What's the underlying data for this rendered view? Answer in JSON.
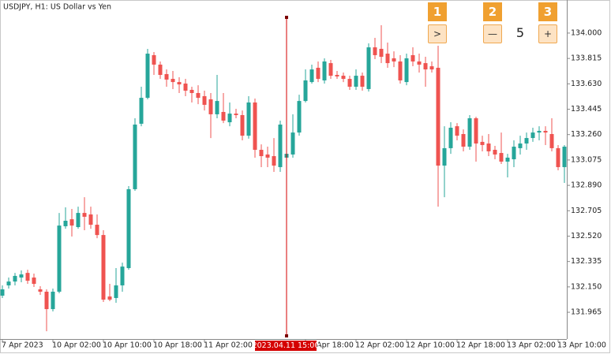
{
  "chart_data": {
    "type": "candlestick",
    "title": "USDJPY, H1:  US Dollar vs Yen",
    "up_color": "#26a69a",
    "down_color": "#ef5350",
    "open": [
      132.086,
      132.161,
      132.189,
      132.218,
      132.252,
      132.218,
      132.132,
      132.115,
      131.988,
      132.115,
      132.592,
      132.643,
      132.586,
      132.689,
      132.678,
      132.603,
      132.528,
      132.08,
      132.069,
      132.161,
      132.287,
      132.862,
      133.339,
      133.528,
      133.839,
      133.77,
      133.701,
      133.666,
      133.643,
      133.632,
      133.586,
      133.563,
      133.54,
      133.517,
      133.408,
      133.425,
      133.35,
      133.413,
      133.402,
      133.252,
      133.494,
      133.149,
      133.115,
      133.103,
      133.023,
      133.092,
      133.115,
      133.275,
      133.505,
      133.643,
      133.747,
      133.655,
      133.781,
      133.695,
      133.689,
      133.666,
      133.609,
      133.689,
      133.592,
      133.896,
      133.885,
      133.85,
      133.816,
      133.793,
      133.643,
      133.839,
      133.793,
      133.781,
      133.758,
      133.747,
      133.034,
      133.161,
      133.321,
      133.264,
      133.172,
      133.379,
      133.207,
      133.195,
      133.149,
      133.126,
      133.063,
      133.08,
      133.161,
      133.195,
      133.235,
      133.275,
      133.287,
      133.264,
      133.161,
      133.023
    ],
    "high": [
      132.161,
      132.218,
      132.252,
      132.27,
      132.275,
      132.247,
      132.155,
      132.132,
      132.138,
      132.689,
      132.73,
      132.718,
      132.735,
      132.804,
      132.735,
      132.678,
      132.563,
      132.172,
      132.287,
      132.327,
      132.885,
      133.379,
      133.609,
      133.885,
      133.862,
      133.793,
      133.735,
      133.724,
      133.678,
      133.666,
      133.609,
      133.62,
      133.58,
      133.563,
      133.695,
      133.563,
      133.494,
      133.448,
      133.436,
      133.54,
      133.523,
      133.189,
      133.172,
      133.235,
      133.362,
      133.207,
      133.408,
      133.551,
      133.735,
      133.77,
      133.793,
      133.816,
      133.804,
      133.724,
      133.712,
      133.689,
      133.735,
      133.712,
      133.925,
      133.965,
      134.057,
      133.931,
      133.867,
      133.839,
      133.85,
      133.896,
      133.85,
      133.827,
      133.793,
      133.908,
      133.321,
      133.35,
      133.344,
      133.298,
      133.402,
      133.39,
      133.252,
      133.264,
      133.178,
      133.275,
      133.12,
      133.218,
      133.252,
      133.275,
      133.31,
      133.321,
      133.321,
      133.379,
      133.184,
      133.184
    ],
    "low": [
      132.069,
      132.138,
      132.161,
      132.184,
      132.172,
      132.149,
      132.092,
      131.827,
      131.971,
      132.103,
      132.574,
      132.517,
      132.574,
      132.563,
      132.574,
      132.505,
      132.04,
      132.046,
      132.034,
      132.115,
      132.275,
      132.85,
      133.321,
      133.517,
      133.695,
      133.666,
      133.609,
      133.592,
      133.563,
      133.54,
      133.494,
      133.482,
      133.436,
      133.235,
      133.379,
      133.344,
      133.321,
      133.379,
      133.218,
      133.23,
      133.092,
      133.023,
      133.023,
      132.988,
      132.988,
      133.057,
      133.092,
      133.252,
      133.494,
      133.632,
      133.643,
      133.632,
      133.666,
      133.666,
      133.643,
      133.586,
      133.586,
      133.58,
      133.574,
      133.81,
      133.781,
      133.747,
      133.752,
      133.632,
      133.62,
      133.758,
      133.712,
      133.609,
      133.712,
      132.735,
      132.804,
      133.12,
      133.218,
      133.138,
      133.149,
      133.063,
      133.138,
      133.103,
      133.08,
      133.046,
      132.948,
      133.023,
      133.115,
      133.149,
      133.207,
      133.218,
      133.184,
      133.138,
      133.0,
      132.908
    ],
    "close": [
      132.132,
      132.189,
      132.23,
      132.241,
      132.195,
      132.172,
      132.115,
      131.988,
      132.115,
      132.597,
      132.632,
      132.597,
      132.689,
      132.661,
      132.603,
      132.528,
      132.057,
      132.057,
      132.161,
      132.298,
      132.862,
      133.333,
      133.528,
      133.85,
      133.77,
      133.695,
      133.661,
      133.643,
      133.626,
      133.58,
      133.563,
      133.528,
      133.477,
      133.408,
      133.505,
      133.362,
      133.413,
      133.402,
      133.252,
      133.494,
      133.149,
      133.103,
      133.092,
      133.034,
      133.333,
      133.12,
      133.275,
      133.505,
      133.655,
      133.735,
      133.666,
      133.793,
      133.689,
      133.684,
      133.666,
      133.609,
      133.689,
      133.609,
      133.896,
      133.839,
      133.827,
      133.781,
      133.793,
      133.655,
      133.816,
      133.793,
      133.77,
      133.735,
      133.735,
      133.034,
      133.161,
      133.31,
      133.252,
      133.172,
      133.379,
      133.195,
      133.184,
      133.138,
      133.115,
      133.063,
      133.092,
      133.172,
      133.195,
      133.235,
      133.275,
      133.287,
      133.275,
      133.161,
      133.023,
      133.172
    ],
    "ylim": [
      131.77,
      134.241
    ],
    "yticks": [
      {
        "value": 134.0,
        "label": "134.000"
      },
      {
        "value": 133.815,
        "label": "133.815"
      },
      {
        "value": 133.63,
        "label": "133.630"
      },
      {
        "value": 133.445,
        "label": "133.445"
      },
      {
        "value": 133.26,
        "label": "133.260"
      },
      {
        "value": 133.075,
        "label": "133.075"
      },
      {
        "value": 132.89,
        "label": "132.890"
      },
      {
        "value": 132.705,
        "label": "132.705"
      },
      {
        "value": 132.52,
        "label": "132.520"
      },
      {
        "value": 132.335,
        "label": "132.335"
      },
      {
        "value": 132.15,
        "label": "132.150"
      },
      {
        "value": 131.965,
        "label": "131.965"
      }
    ],
    "xlim": [
      -0.375,
      89.375
    ],
    "xticks": [
      {
        "value": 0,
        "label": "7 Apr 2023"
      },
      {
        "value": 8,
        "label": "10 Apr 02:00"
      },
      {
        "value": 16,
        "label": "10 Apr 10:00"
      },
      {
        "value": 24,
        "label": "10 Apr 18:00"
      },
      {
        "value": 32,
        "label": "11 Apr 02:00"
      },
      {
        "value": 48,
        "label": "11 Apr 18:00"
      },
      {
        "value": 56,
        "label": "12 Apr 02:00"
      },
      {
        "value": 64,
        "label": "12 Apr 10:00"
      },
      {
        "value": 72,
        "label": "12 Apr 18:00"
      },
      {
        "value": 80,
        "label": "13 Apr 02:00"
      },
      {
        "value": 88,
        "label": "13 Apr 10:00"
      }
    ],
    "crosshair": {
      "x": 45,
      "label": "2023.04.11 15:00",
      "color": "#d50000"
    }
  },
  "controls": [
    {
      "badge": "1",
      "label": ">"
    },
    {
      "badge": "2",
      "label": "—"
    },
    {
      "badge": "3",
      "label": "+"
    }
  ],
  "counter": "5"
}
